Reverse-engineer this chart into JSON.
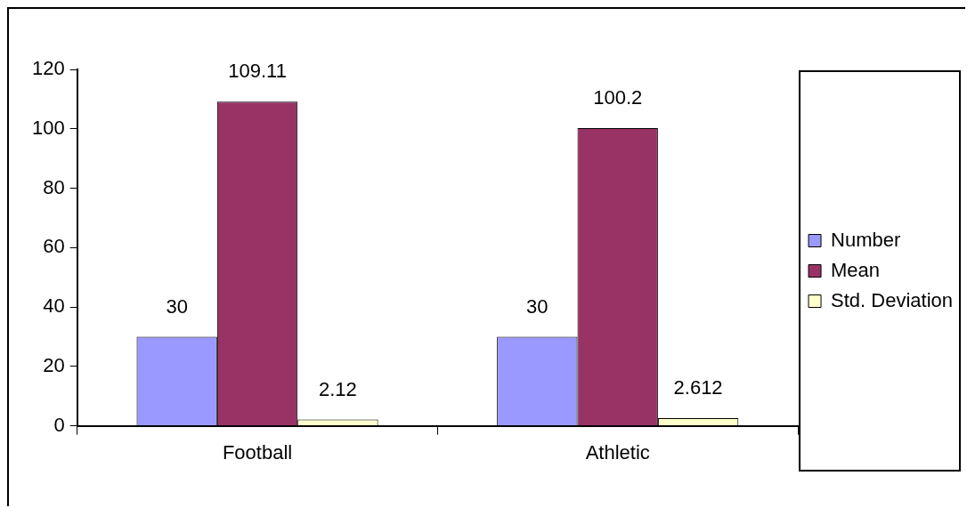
{
  "chart_data": {
    "type": "bar",
    "categories": [
      "Football",
      "Athletic"
    ],
    "series": [
      {
        "name": "Number",
        "color": "#9999ff",
        "values": [
          30,
          30
        ]
      },
      {
        "name": "Mean",
        "color": "#993366",
        "values": [
          109.11,
          100.2
        ]
      },
      {
        "name": "Std. Deviation",
        "color": "#ffffcc",
        "values": [
          2.12,
          2.612
        ]
      }
    ],
    "ylim": [
      0,
      120
    ],
    "yticks": [
      0,
      20,
      40,
      60,
      80,
      100,
      120
    ],
    "grid": false,
    "legend": "right",
    "data_labels": true
  }
}
